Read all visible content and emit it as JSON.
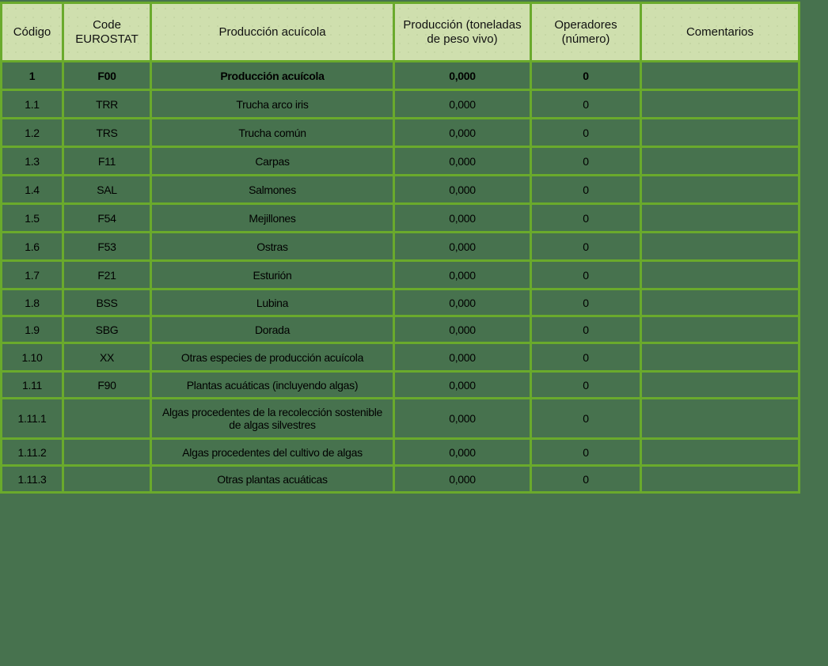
{
  "table": {
    "headers": [
      "Código",
      "Code EUROSTAT",
      "Producción acuícola",
      "Producción (toneladas de peso vivo)",
      "Operadores (número)",
      "Comentarios"
    ],
    "rows": [
      {
        "codigo": "1",
        "eurostat": "F00",
        "produccion": "Producción acuícola",
        "toneladas": "0,000",
        "operadores": "0",
        "comentarios": "",
        "bold": true
      },
      {
        "codigo": "1.1",
        "eurostat": "TRR",
        "produccion": "Trucha arco iris",
        "toneladas": "0,000",
        "operadores": "0",
        "comentarios": ""
      },
      {
        "codigo": "1.2",
        "eurostat": "TRS",
        "produccion": "Trucha común",
        "toneladas": "0,000",
        "operadores": "0",
        "comentarios": ""
      },
      {
        "codigo": "1.3",
        "eurostat": "F11",
        "produccion": "Carpas",
        "toneladas": "0,000",
        "operadores": "0",
        "comentarios": ""
      },
      {
        "codigo": "1.4",
        "eurostat": "SAL",
        "produccion": "Salmones",
        "toneladas": "0,000",
        "operadores": "0",
        "comentarios": ""
      },
      {
        "codigo": "1.5",
        "eurostat": "F54",
        "produccion": "Mejillones",
        "toneladas": "0,000",
        "operadores": "0",
        "comentarios": ""
      },
      {
        "codigo": "1.6",
        "eurostat": "F53",
        "produccion": "Ostras",
        "toneladas": "0,000",
        "operadores": "0",
        "comentarios": ""
      },
      {
        "codigo": "1.7",
        "eurostat": "F21",
        "produccion": "Esturión",
        "toneladas": "0,000",
        "operadores": "0",
        "comentarios": ""
      },
      {
        "codigo": "1.8",
        "eurostat": "BSS",
        "produccion": "Lubina",
        "toneladas": "0,000",
        "operadores": "0",
        "comentarios": ""
      },
      {
        "codigo": "1.9",
        "eurostat": "SBG",
        "produccion": "Dorada",
        "toneladas": "0,000",
        "operadores": "0",
        "comentarios": ""
      },
      {
        "codigo": "1.10",
        "eurostat": "XX",
        "produccion": "Otras  especies de producción acuícola",
        "toneladas": "0,000",
        "operadores": "0",
        "comentarios": ""
      },
      {
        "codigo": "1.11",
        "eurostat": "F90",
        "produccion": "Plantas acuáticas (incluyendo algas)",
        "toneladas": "0,000",
        "operadores": "0",
        "comentarios": ""
      },
      {
        "codigo": "1.11.1",
        "eurostat": "",
        "produccion": "Algas procedentes de la recolección sostenible de algas silvestres",
        "toneladas": "0,000",
        "operadores": "0",
        "comentarios": ""
      },
      {
        "codigo": "1.11.2",
        "eurostat": "",
        "produccion": "Algas procedentes del cultivo de algas",
        "toneladas": "0,000",
        "operadores": "0",
        "comentarios": ""
      },
      {
        "codigo": "1.11.3",
        "eurostat": "",
        "produccion": "Otras plantas acuáticas",
        "toneladas": "0,000",
        "operadores": "0",
        "comentarios": ""
      }
    ]
  },
  "colors": {
    "background": "#47724e",
    "header_fill": "#cfdfae",
    "grid_line": "#6aaa2c",
    "text": "#000000"
  }
}
